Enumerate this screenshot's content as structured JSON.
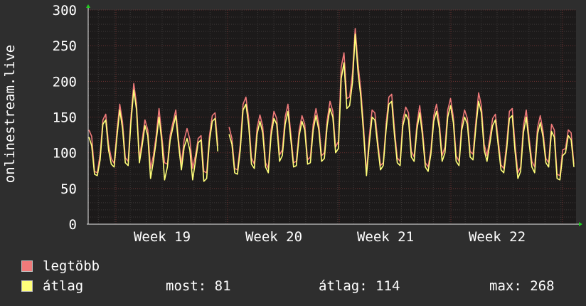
{
  "chart_data": {
    "type": "line",
    "ylabel": "onlinestream.live",
    "ylim": [
      0,
      300
    ],
    "yticks": [
      0,
      50,
      100,
      150,
      200,
      250,
      300
    ],
    "x_tick_labels": [
      "Week 19",
      "Week 20",
      "Week 21",
      "Week 22"
    ],
    "grid": true,
    "series": [
      {
        "name": "legtöbb",
        "color": "#f07a7a",
        "values": [
          132,
          123,
          74,
          72,
          98,
          146,
          154,
          112,
          92,
          85,
          130,
          168,
          143,
          93,
          88,
          150,
          197,
          168,
          92,
          118,
          146,
          132,
          78,
          96,
          124,
          162,
          124,
          86,
          84,
          125,
          143,
          160,
          117,
          84,
          118,
          134,
          119,
          78,
          96,
          120,
          124,
          74,
          72,
          124,
          152,
          156,
          110,
          null,
          null,
          null,
          136,
          120,
          78,
          76,
          112,
          168,
          178,
          148,
          93,
          84,
          135,
          153,
          137,
          86,
          78,
          132,
          158,
          148,
          97,
          104,
          150,
          168,
          128,
          86,
          88,
          132,
          152,
          140,
          90,
          94,
          140,
          162,
          140,
          96,
          100,
          146,
          172,
          158,
          108,
          116,
          220,
          240,
          176,
          178,
          211,
          274,
          224,
          188,
          136,
          72,
          122,
          160,
          156,
          118,
          82,
          86,
          140,
          178,
          182,
          133,
          93,
          88,
          146,
          164,
          156,
          102,
          94,
          140,
          166,
          132,
          86,
          80,
          104,
          152,
          168,
          142,
          96,
          108,
          160,
          176,
          150,
          96,
          88,
          140,
          160,
          148,
          102,
          98,
          142,
          184,
          166,
          112,
          96,
          120,
          148,
          154,
          118,
          83,
          78,
          112,
          158,
          162,
          112,
          72,
          80,
          138,
          160,
          122,
          88,
          80,
          135,
          152,
          130,
          92,
          86,
          140,
          132,
          70,
          68,
          104,
          106,
          132,
          128,
          84
        ]
      },
      {
        "name": "átlag",
        "color": "#ffff7a",
        "values": [
          122,
          110,
          70,
          68,
          90,
          140,
          146,
          104,
          84,
          80,
          122,
          160,
          134,
          86,
          82,
          142,
          188,
          160,
          86,
          110,
          138,
          124,
          64,
          88,
          116,
          150,
          116,
          62,
          80,
          118,
          136,
          152,
          110,
          76,
          108,
          120,
          104,
          62,
          88,
          114,
          118,
          60,
          64,
          116,
          144,
          148,
          102,
          null,
          null,
          null,
          126,
          112,
          72,
          70,
          104,
          160,
          168,
          138,
          84,
          78,
          126,
          144,
          128,
          80,
          72,
          124,
          148,
          140,
          88,
          96,
          140,
          158,
          120,
          80,
          82,
          124,
          144,
          132,
          84,
          86,
          132,
          152,
          132,
          88,
          92,
          138,
          162,
          150,
          100,
          106,
          204,
          226,
          162,
          166,
          198,
          266,
          212,
          178,
          126,
          68,
          112,
          150,
          146,
          110,
          76,
          82,
          132,
          168,
          172,
          124,
          86,
          82,
          138,
          154,
          146,
          94,
          88,
          132,
          156,
          124,
          80,
          74,
          98,
          144,
          158,
          134,
          88,
          100,
          150,
          166,
          142,
          88,
          82,
          132,
          150,
          140,
          94,
          90,
          134,
          172,
          156,
          104,
          88,
          112,
          138,
          146,
          110,
          76,
          72,
          104,
          148,
          152,
          102,
          64,
          74,
          128,
          150,
          114,
          80,
          72,
          126,
          142,
          122,
          86,
          80,
          130,
          122,
          64,
          62,
          96,
          100,
          124,
          118,
          80
        ]
      }
    ]
  },
  "legend": {
    "items": [
      {
        "label": "legtöbb",
        "color": "#f07a7a"
      },
      {
        "label": "átlag",
        "color": "#ffff7a"
      }
    ],
    "stats": {
      "most": "most: 81",
      "atlag": "átlag: 114",
      "max": "max: 268"
    }
  }
}
